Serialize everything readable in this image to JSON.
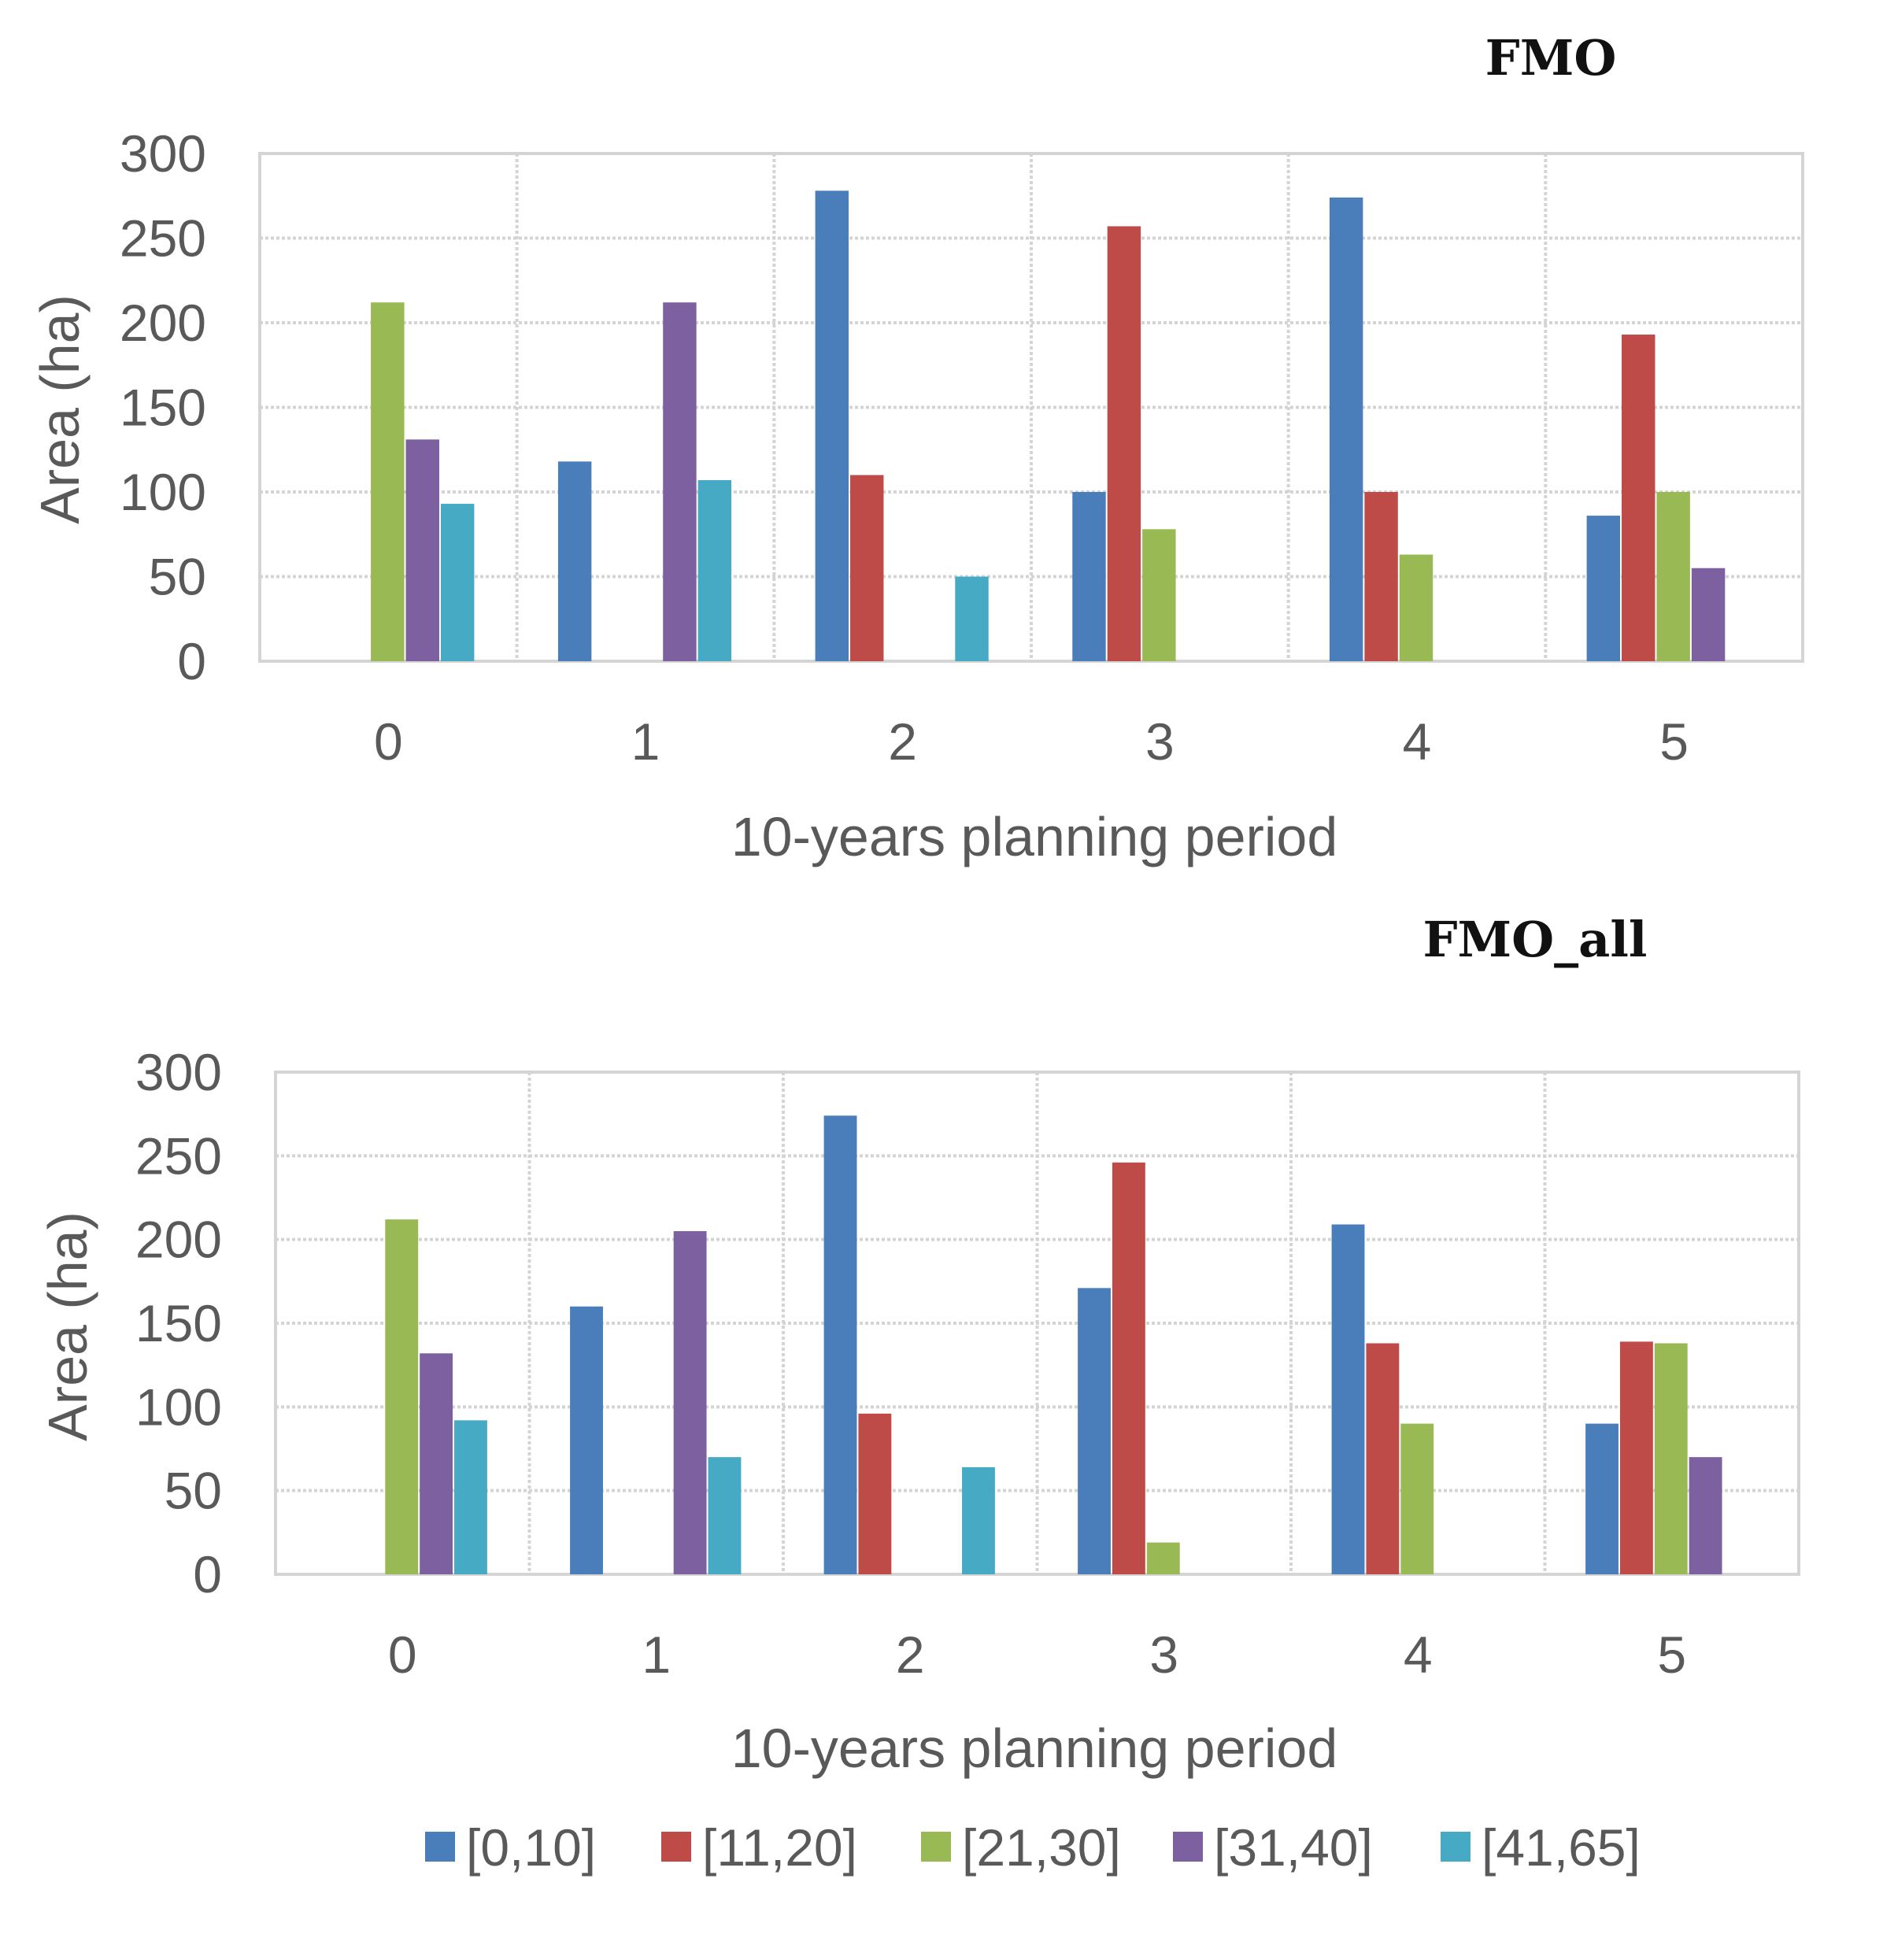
{
  "chart_data": [
    {
      "type": "bar",
      "title": "FMO",
      "xlabel": "10-years planning period",
      "ylabel": "Area (ha)",
      "ylim": [
        0,
        300
      ],
      "yticks": [
        "0",
        "50",
        "100",
        "150",
        "200",
        "250",
        "300"
      ],
      "categories": [
        "0",
        "1",
        "2",
        "3",
        "4",
        "5"
      ],
      "grid": true,
      "series": [
        {
          "name": "[0,10]",
          "color": "#4a7ebb",
          "values": [
            0,
            118,
            278,
            100,
            274,
            86
          ]
        },
        {
          "name": "[11,20]",
          "color": "#be4b48",
          "values": [
            0,
            0,
            110,
            257,
            100,
            193
          ]
        },
        {
          "name": "[21,30]",
          "color": "#98b954",
          "values": [
            212,
            0,
            0,
            78,
            63,
            100
          ]
        },
        {
          "name": "[31,40]",
          "color": "#7d60a0",
          "values": [
            131,
            212,
            0,
            0,
            0,
            55
          ]
        },
        {
          "name": "[41,65]",
          "color": "#46aac5",
          "values": [
            93,
            107,
            50,
            0,
            0,
            0
          ]
        }
      ]
    },
    {
      "type": "bar",
      "title": "FMO_all",
      "xlabel": "10-years planning period",
      "ylabel": "Area (ha)",
      "ylim": [
        0,
        300
      ],
      "yticks": [
        "0",
        "50",
        "100",
        "150",
        "200",
        "250",
        "300"
      ],
      "categories": [
        "0",
        "1",
        "2",
        "3",
        "4",
        "5"
      ],
      "grid": true,
      "series": [
        {
          "name": "[0,10]",
          "color": "#4a7ebb",
          "values": [
            0,
            160,
            274,
            171,
            209,
            90
          ]
        },
        {
          "name": "[11,20]",
          "color": "#be4b48",
          "values": [
            0,
            0,
            96,
            246,
            138,
            139
          ]
        },
        {
          "name": "[21,30]",
          "color": "#98b954",
          "values": [
            212,
            0,
            0,
            19,
            90,
            138
          ]
        },
        {
          "name": "[31,40]",
          "color": "#7d60a0",
          "values": [
            132,
            205,
            0,
            0,
            0,
            70
          ]
        },
        {
          "name": "[41,65]",
          "color": "#46aac5",
          "values": [
            92,
            70,
            64,
            0,
            0,
            0
          ]
        }
      ]
    }
  ],
  "legend": {
    "position": "bottom",
    "items": [
      {
        "label": "[0,10]",
        "color": "#4a7ebb"
      },
      {
        "label": "[11,20]",
        "color": "#be4b48"
      },
      {
        "label": "[21,30]",
        "color": "#98b954"
      },
      {
        "label": "[31,40]",
        "color": "#7d60a0"
      },
      {
        "label": "[41,65]",
        "color": "#46aac5"
      }
    ]
  }
}
